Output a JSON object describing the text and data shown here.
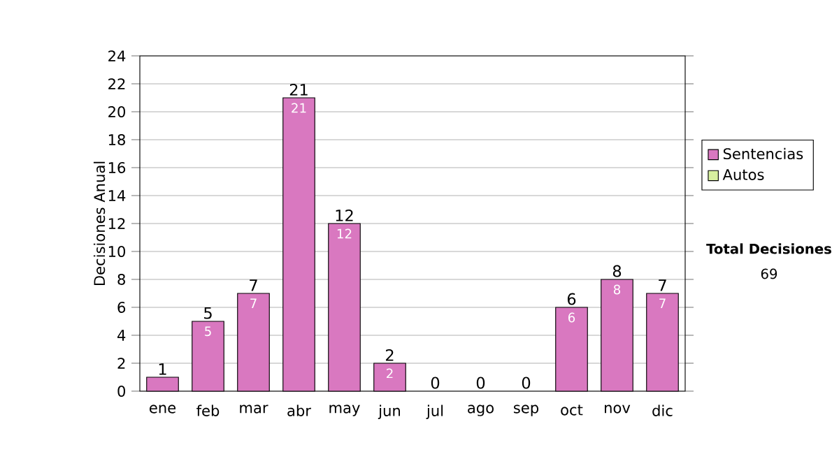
{
  "chart_data": {
    "type": "bar",
    "stacked": true,
    "ylabel": "Decisiones Anual",
    "categories": [
      "ene",
      "feb",
      "mar",
      "abr",
      "may",
      "jun",
      "jul",
      "ago",
      "sep",
      "oct",
      "nov",
      "dic"
    ],
    "series": [
      {
        "name": "Sentencias",
        "color": "#d978c0",
        "values": [
          1,
          5,
          7,
          21,
          12,
          2,
          0,
          0,
          0,
          6,
          8,
          7
        ],
        "value_labels": [
          null,
          "5",
          "7",
          "21",
          "12",
          "2",
          null,
          null,
          null,
          "6",
          "8",
          "7"
        ]
      },
      {
        "name": "Autos",
        "color": "#d8f0a0",
        "values": [
          0,
          0,
          0,
          0,
          0,
          0,
          0,
          0,
          0,
          0,
          0,
          0
        ]
      }
    ],
    "totals": [
      "1",
      "5",
      "7",
      "21",
      "12",
      "2",
      "0",
      "0",
      "0",
      "6",
      "8",
      "7"
    ],
    "ylim": [
      0,
      24
    ],
    "yticks": [
      0,
      2,
      4,
      6,
      8,
      10,
      12,
      14,
      16,
      18,
      20,
      22,
      24
    ],
    "grid": "y",
    "legend": "right",
    "annotations": [
      "Total Decisiones",
      "69"
    ]
  }
}
